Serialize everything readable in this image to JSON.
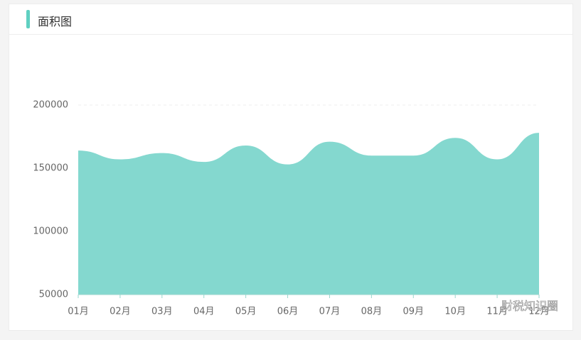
{
  "chart_data": {
    "type": "area",
    "title": "面积图",
    "categories": [
      "01月",
      "02月",
      "03月",
      "04月",
      "05月",
      "06月",
      "07月",
      "08月",
      "09月",
      "10月",
      "11月",
      "12月"
    ],
    "values": [
      164000,
      157000,
      162000,
      155000,
      168000,
      153000,
      171000,
      160000,
      160000,
      174000,
      157000,
      178000
    ],
    "color": "#84d8cf",
    "ylim": [
      50000,
      200000
    ],
    "yticks": [
      50000,
      100000,
      150000,
      200000
    ],
    "watermark": "财税知识圈"
  }
}
